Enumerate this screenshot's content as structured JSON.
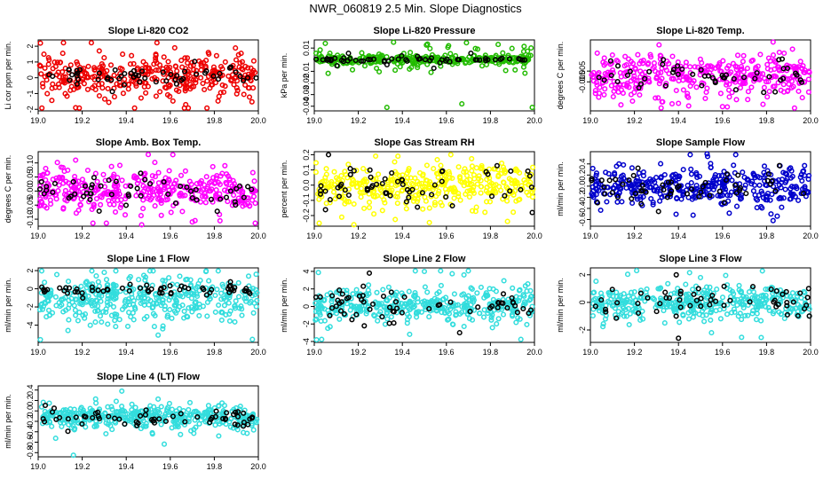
{
  "title": "NWR_060819  2.5 Min. Slope Diagnostics",
  "chart_data": [
    {
      "type": "scatter",
      "title": "Slope Li-820 CO2",
      "xlabel": "",
      "ylabel": "Li cor ppm per min.",
      "xlim": [
        19.0,
        20.0
      ],
      "ylim": [
        -2.1,
        2.4
      ],
      "xticks": [
        "19.0",
        "19.2",
        "19.4",
        "19.6",
        "19.8",
        "20.0"
      ],
      "yticks": [
        "-2",
        "-1",
        "0",
        "1",
        "2"
      ],
      "series": [
        {
          "color": "#ee0000",
          "n": 360,
          "center": 0.1,
          "spread": 0.6,
          "tail": 0.12,
          "tail_spread": 1.7,
          "extremes": [
            [
              19.01,
              2.2
            ],
            [
              19.17,
              -1.9
            ],
            [
              19.62,
              1.9
            ],
            [
              19.67,
              -1.7
            ],
            [
              19.81,
              1.4
            ]
          ]
        },
        {
          "color": "#000000",
          "n": 55,
          "center": 0.05,
          "spread": 0.3,
          "tail": 0.1,
          "tail_spread": 0.6,
          "extremes": []
        }
      ]
    },
    {
      "type": "scatter",
      "title": "Slope Li-820 Pressure",
      "xlabel": "",
      "ylabel": "kPa per min.",
      "xlim": [
        19.0,
        20.0
      ],
      "ylim": [
        -0.044,
        0.017
      ],
      "xticks": [
        "19.0",
        "19.2",
        "19.4",
        "19.6",
        "19.8",
        "20.0"
      ],
      "yticks": [
        "-0.04",
        "-0.03",
        "-0.02",
        "-0.01",
        "0.01"
      ],
      "series": [
        {
          "color": "#22bb00",
          "n": 360,
          "center": 0.0,
          "spread": 0.0015,
          "tail": 0.3,
          "tail_spread": 0.007,
          "extremes": [
            [
              19.33,
              -0.041
            ],
            [
              19.67,
              -0.038
            ],
            [
              19.99,
              -0.041
            ],
            [
              19.36,
              0.015
            ],
            [
              19.05,
              0.014
            ]
          ]
        },
        {
          "color": "#000000",
          "n": 60,
          "center": 0.0,
          "spread": 0.0008,
          "tail": 0.15,
          "tail_spread": 0.004,
          "extremes": []
        }
      ]
    },
    {
      "type": "scatter",
      "title": "Slope Li-820 Temp.",
      "xlabel": "",
      "ylabel": "degrees C per min.",
      "xlim": [
        19.0,
        20.0
      ],
      "ylim": [
        -0.032,
        0.034
      ],
      "xticks": [
        "19.0",
        "19.2",
        "19.4",
        "19.6",
        "19.8",
        "20.0"
      ],
      "yticks": [
        "-0.005",
        "0.005"
      ],
      "series": [
        {
          "color": "#ff00ff",
          "n": 380,
          "center": 0.0,
          "spread": 0.009,
          "tail": 0.12,
          "tail_spread": 0.018,
          "extremes": [
            [
              19.83,
              0.032
            ],
            [
              19.6,
              -0.028
            ],
            [
              19.1,
              0.02
            ],
            [
              19.4,
              -0.025
            ]
          ]
        },
        {
          "color": "#000000",
          "n": 50,
          "center": 0.0,
          "spread": 0.006,
          "tail": 0.1,
          "tail_spread": 0.01,
          "extremes": []
        }
      ]
    },
    {
      "type": "scatter",
      "title": "Slope Amb. Box Temp.",
      "xlabel": "",
      "ylabel": "degrees C per min.",
      "xlim": [
        19.0,
        20.0
      ],
      "ylim": [
        -0.125,
        0.14
      ],
      "xticks": [
        "19.0",
        "19.2",
        "19.4",
        "19.6",
        "19.8",
        "20.0"
      ],
      "yticks": [
        "-0.10",
        "-0.05",
        "0.00",
        "0.05",
        "0.10"
      ],
      "series": [
        {
          "color": "#ff00ff",
          "n": 380,
          "center": 0.0,
          "spread": 0.035,
          "tail": 0.12,
          "tail_spread": 0.07,
          "extremes": [
            [
              19.5,
              0.13
            ],
            [
              19.47,
              -0.12
            ],
            [
              19.17,
              0.11
            ],
            [
              19.7,
              -0.11
            ]
          ]
        },
        {
          "color": "#000000",
          "n": 55,
          "center": 0.0,
          "spread": 0.03,
          "tail": 0.1,
          "tail_spread": 0.05,
          "extremes": []
        }
      ]
    },
    {
      "type": "scatter",
      "title": "Slope Gas Stream RH",
      "xlabel": "",
      "ylabel": "percent per min.",
      "xlim": [
        19.0,
        20.0
      ],
      "ylim": [
        -0.27,
        0.22
      ],
      "xticks": [
        "19.0",
        "19.2",
        "19.4",
        "19.6",
        "19.8",
        "20.0"
      ],
      "yticks": [
        "-0.2",
        "-0.1",
        "0.0",
        "0.1",
        "0.2"
      ],
      "series": [
        {
          "color": "#ffff00",
          "n": 380,
          "center": 0.0,
          "spread": 0.07,
          "tail": 0.12,
          "tail_spread": 0.13,
          "extremes": [
            [
              19.18,
              -0.26
            ],
            [
              19.62,
              0.2
            ],
            [
              19.38,
              0.19
            ]
          ]
        },
        {
          "color": "#000000",
          "n": 60,
          "center": -0.01,
          "spread": 0.06,
          "tail": 0.1,
          "tail_spread": 0.1,
          "extremes": [
            [
              19.99,
              -0.18
            ]
          ]
        }
      ]
    },
    {
      "type": "scatter",
      "title": "Slope Sample Flow",
      "xlabel": "",
      "ylabel": "ml/min per min.",
      "xlim": [
        19.0,
        20.0
      ],
      "ylim": [
        -0.72,
        0.62
      ],
      "xticks": [
        "19.0",
        "19.2",
        "19.4",
        "19.6",
        "19.8",
        "20.0"
      ],
      "yticks": [
        "-0.6",
        "-0.4",
        "-0.2",
        "0.0",
        "0.2",
        "0.4"
      ],
      "series": [
        {
          "color": "#0000cc",
          "n": 380,
          "center": 0.0,
          "spread": 0.17,
          "tail": 0.12,
          "tail_spread": 0.32,
          "extremes": [
            [
              19.53,
              0.58
            ],
            [
              19.83,
              -0.62
            ],
            [
              19.82,
              -0.5
            ],
            [
              19.13,
              0.4
            ]
          ]
        },
        {
          "color": "#000000",
          "n": 55,
          "center": 0.0,
          "spread": 0.15,
          "tail": 0.1,
          "tail_spread": 0.25,
          "extremes": []
        }
      ]
    },
    {
      "type": "scatter",
      "title": "Slope Line 1 Flow",
      "xlabel": "",
      "ylabel": "ml/min per min.",
      "xlim": [
        19.0,
        20.0
      ],
      "ylim": [
        -5.9,
        2.3
      ],
      "xticks": [
        "19.0",
        "19.2",
        "19.4",
        "19.6",
        "19.8",
        "20.0"
      ],
      "yticks": [
        "-4",
        "-2",
        "0",
        "2"
      ],
      "series": [
        {
          "color": "#33dddd",
          "n": 400,
          "center": -1.2,
          "spread": 1.25,
          "tail": 0.1,
          "tail_spread": 2.2,
          "extremes": [
            [
              19.01,
              -5.6
            ],
            [
              19.99,
              1.6
            ],
            [
              19.3,
              1.8
            ]
          ]
        },
        {
          "color": "#000000",
          "n": 60,
          "center": 0.0,
          "spread": 0.3,
          "tail": 0.1,
          "tail_spread": 0.5,
          "extremes": []
        }
      ]
    },
    {
      "type": "scatter",
      "title": "Slope Line 2 Flow",
      "xlabel": "",
      "ylabel": "ml/min per min.",
      "xlim": [
        19.0,
        20.0
      ],
      "ylim": [
        -4.1,
        4.4
      ],
      "xticks": [
        "19.0",
        "19.2",
        "19.4",
        "19.6",
        "19.8",
        "20.0"
      ],
      "yticks": [
        "-4",
        "-2",
        "0",
        "2",
        "4"
      ],
      "series": [
        {
          "color": "#33dddd",
          "n": 400,
          "center": 0.1,
          "spread": 0.9,
          "tail": 0.12,
          "tail_spread": 1.8,
          "extremes": [
            [
              19.01,
              -3.8
            ],
            [
              19.5,
              4.0
            ],
            [
              19.68,
              3.6
            ]
          ]
        },
        {
          "color": "#000000",
          "n": 60,
          "center": 0.0,
          "spread": 0.9,
          "tail": 0.15,
          "tail_spread": 1.8,
          "extremes": [
            [
              19.25,
              3.8
            ],
            [
              19.66,
              -3.0
            ]
          ]
        }
      ]
    },
    {
      "type": "scatter",
      "title": "Slope Line 3 Flow",
      "xlabel": "",
      "ylabel": "ml/min per min.",
      "xlim": [
        19.0,
        20.0
      ],
      "ylim": [
        -2.9,
        2.5
      ],
      "xticks": [
        "19.0",
        "19.2",
        "19.4",
        "19.6",
        "19.8",
        "20.0"
      ],
      "yticks": [
        "-2",
        "0",
        "2"
      ],
      "series": [
        {
          "color": "#33dddd",
          "n": 400,
          "center": 0.0,
          "spread": 0.55,
          "tail": 0.1,
          "tail_spread": 1.1,
          "extremes": [
            [
              19.21,
              2.3
            ],
            [
              19.55,
              -2.2
            ],
            [
              19.5,
              1.8
            ]
          ]
        },
        {
          "color": "#000000",
          "n": 55,
          "center": 0.0,
          "spread": 0.6,
          "tail": 0.1,
          "tail_spread": 1.0,
          "extremes": [
            [
              19.4,
              -2.6
            ],
            [
              19.39,
              2.0
            ]
          ]
        }
      ]
    },
    {
      "type": "scatter",
      "title": "Slope Line 4 (LT) Flow",
      "xlabel": "",
      "ylabel": "ml/min per min.",
      "xlim": [
        19.0,
        20.0
      ],
      "ylim": [
        -0.88,
        0.48
      ],
      "xticks": [
        "19.0",
        "19.2",
        "19.4",
        "19.6",
        "19.8",
        "20.0"
      ],
      "yticks": [
        "-0.8",
        "-0.6",
        "-0.4",
        "-0.2",
        "0.0",
        "0.2",
        "0.4"
      ],
      "series": [
        {
          "color": "#33dddd",
          "n": 400,
          "center": -0.12,
          "spread": 0.1,
          "tail": 0.1,
          "tail_spread": 0.2,
          "extremes": [
            [
              19.16,
              -0.85
            ],
            [
              19.38,
              0.38
            ],
            [
              19.82,
              -0.48
            ]
          ]
        },
        {
          "color": "#000000",
          "n": 60,
          "center": -0.12,
          "spread": 0.08,
          "tail": 0.1,
          "tail_spread": 0.15,
          "extremes": []
        }
      ]
    }
  ]
}
